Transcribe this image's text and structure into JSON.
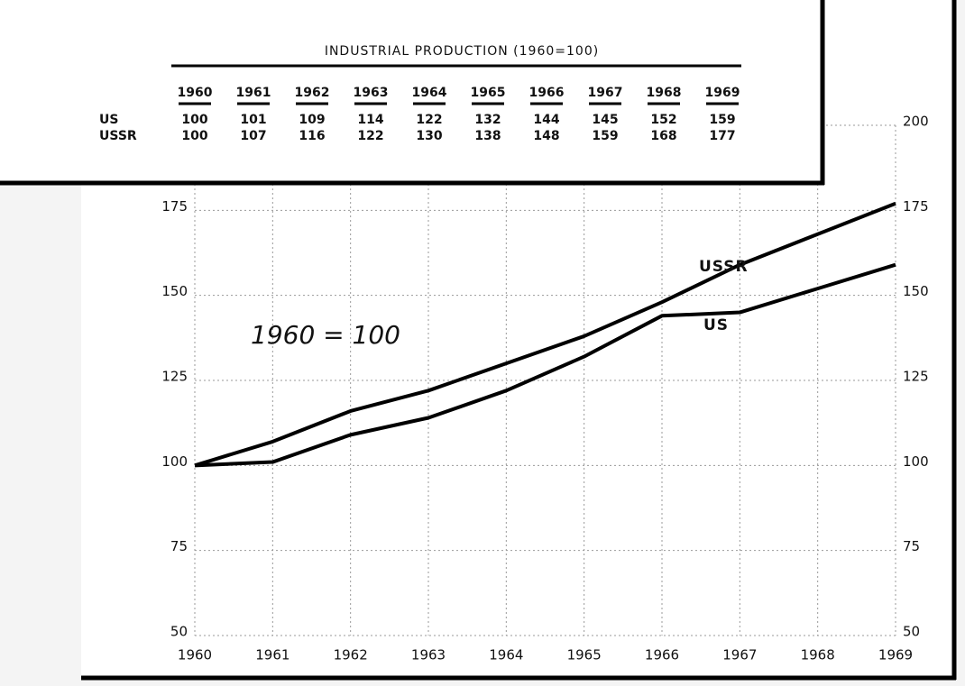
{
  "chart_data": {
    "type": "line",
    "table_title": "INDUSTRIAL PRODUCTION (1960=100)",
    "annotation": "1960 = 100",
    "x": [
      1960,
      1961,
      1962,
      1963,
      1964,
      1965,
      1966,
      1967,
      1968,
      1969
    ],
    "xlim": [
      1960,
      1969
    ],
    "series": [
      {
        "name": "US",
        "color": "#000000",
        "values": [
          100,
          101,
          109,
          114,
          122,
          132,
          144,
          145,
          152,
          159
        ]
      },
      {
        "name": "USSR",
        "color": "#000000",
        "values": [
          100,
          107,
          116,
          122,
          130,
          138,
          148,
          159,
          168,
          177
        ]
      }
    ],
    "ylim": [
      50,
      200
    ],
    "yticks": [
      50,
      75,
      100,
      125,
      150,
      175,
      200
    ],
    "grid": true
  }
}
